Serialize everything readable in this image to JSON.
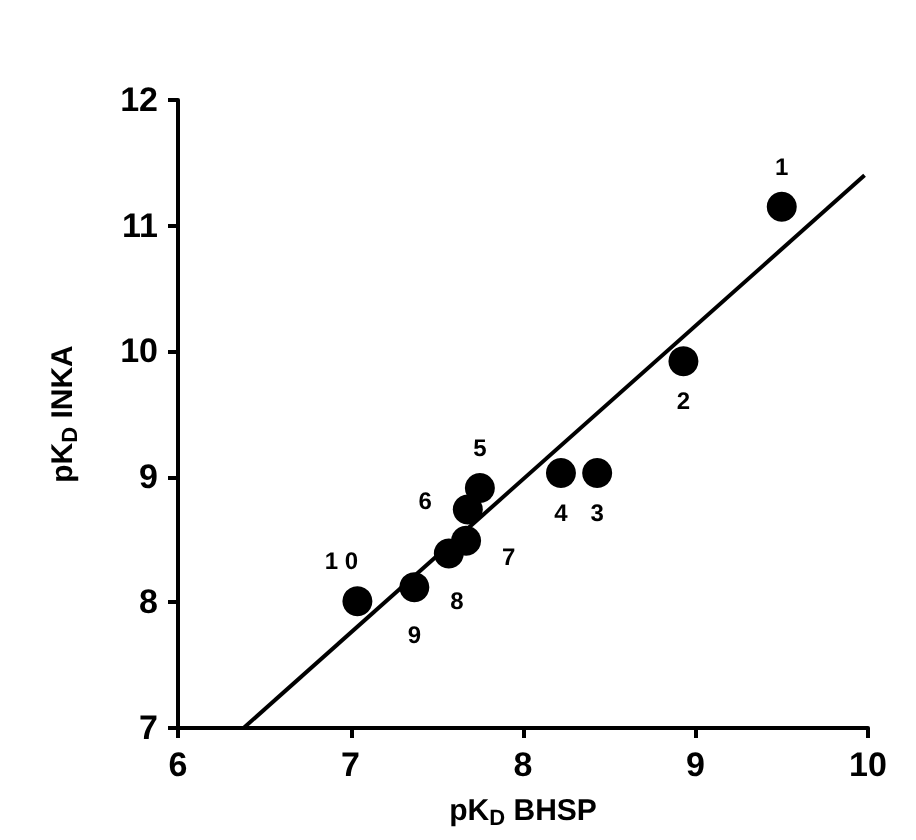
{
  "chart_data": {
    "type": "scatter",
    "xlabel": "pK$_{D}$ BHSP",
    "ylabel": "pK$_{D}$ INKA",
    "x": [
      9.5,
      8.93,
      8.43,
      8.22,
      7.75,
      7.68,
      7.67,
      7.57,
      7.37,
      7.04
    ],
    "series": [
      {
        "color": "#000000",
        "values": [
          11.15,
          9.92,
          9.03,
          9.03,
          8.91,
          8.74,
          8.49,
          8.39,
          8.12,
          8.01
        ]
      },
      {
        "type": "line",
        "color": "#000000",
        "marker": "none",
        "x": [
          6.38,
          9.98
        ],
        "values": [
          7,
          11.4
        ]
      }
    ],
    "annotations": [
      {
        "text": "1",
        "x": 9.5,
        "y": 11.15
      },
      {
        "text": "2",
        "x": 8.93,
        "y": 9.92
      },
      {
        "text": "3",
        "x": 8.43,
        "y": 9.03
      },
      {
        "text": "4",
        "x": 8.22,
        "y": 9.03
      },
      {
        "text": "5",
        "x": 7.75,
        "y": 8.91
      },
      {
        "text": "6",
        "x": 7.68,
        "y": 8.74
      },
      {
        "text": "7",
        "x": 7.67,
        "y": 8.49
      },
      {
        "text": "8",
        "x": 7.57,
        "y": 8.39
      },
      {
        "text": "9",
        "x": 7.37,
        "y": 8.12
      },
      {
        "text": "1 0",
        "x": 7.04,
        "y": 8.01
      }
    ],
    "xlim": [
      6,
      10
    ],
    "xticks": [
      6,
      7,
      8,
      9,
      10
    ],
    "ylim": [
      7,
      12
    ],
    "yticks": [
      7,
      8,
      9,
      10,
      11,
      12
    ],
    "marker": "circle",
    "line_style": "solid",
    "grid": false
  }
}
